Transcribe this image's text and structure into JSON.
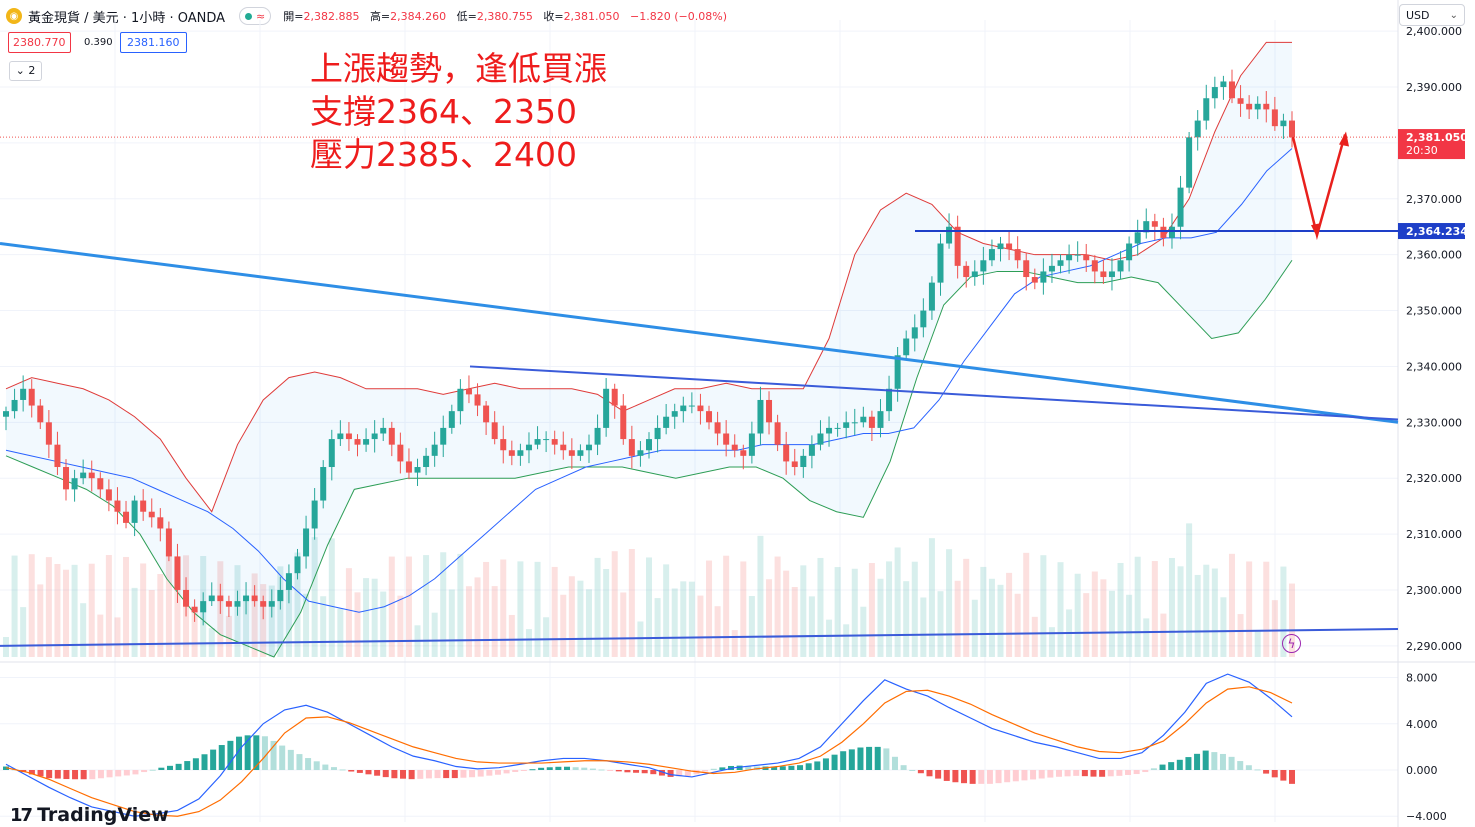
{
  "header": {
    "symbol": "黃金現貨 / 美元 · 1小時 · OANDA",
    "open_label": "開=",
    "open": "2,382.885",
    "high_label": "高=",
    "high": "2,384.260",
    "low_label": "低=",
    "low": "2,380.755",
    "close_label": "收=",
    "close": "2,381.050",
    "change": "−1.820 (−0.08%)",
    "bid": "2380.770",
    "spread": "0.390",
    "ask": "2381.160",
    "indicator_toggle": "2"
  },
  "currency": "USD",
  "annotation": [
    "上漲趨勢，逢低買漲",
    "支撐2364、2350",
    "壓力2385、2400"
  ],
  "logo": "TradingView",
  "colors": {
    "up": "#26a69a",
    "down": "#ef5350",
    "annotation": "#ee1c1c",
    "trendline": "#2962ff"
  },
  "chart_data": [
    {
      "type": "candlestick",
      "y_ticks": [
        "2,400.000",
        "2,390.000",
        "2,381.050",
        "2,370.000",
        "2,364.234",
        "2,360.000",
        "2,350.000",
        "2,340.000",
        "2,330.000",
        "2,320.000",
        "2,310.000",
        "2,300.000",
        "2,290.000"
      ],
      "ylim": [
        2288,
        2402
      ],
      "last_price_label": "2,381.050",
      "countdown": "20:30",
      "support_level_label": "2,364.234",
      "closes": [
        2332,
        2334,
        2336,
        2333,
        2330,
        2326,
        2322,
        2318,
        2320,
        2321,
        2320,
        2318,
        2316,
        2314,
        2312,
        2316,
        2314,
        2313,
        2311,
        2306,
        2300,
        2297,
        2296,
        2298,
        2299,
        2298,
        2297,
        2298,
        2299,
        2298,
        2297,
        2298,
        2300,
        2303,
        2306,
        2311,
        2316,
        2322,
        2327,
        2328,
        2327,
        2326,
        2327,
        2328,
        2329,
        2326,
        2323,
        2321,
        2322,
        2324,
        2326,
        2329,
        2332,
        2336,
        2335,
        2333,
        2330,
        2327,
        2325,
        2324,
        2325,
        2326,
        2327,
        2327,
        2326,
        2325,
        2324,
        2325,
        2326,
        2329,
        2336,
        2333,
        2327,
        2324,
        2325,
        2327,
        2329,
        2331,
        2332,
        2333,
        2333,
        2332,
        2330,
        2328,
        2326,
        2325,
        2324,
        2328,
        2334,
        2330,
        2326,
        2323,
        2322,
        2324,
        2326,
        2328,
        2329,
        2329,
        2330,
        2330,
        2331,
        2329,
        2332,
        2336,
        2342,
        2345,
        2347,
        2350,
        2355,
        2362,
        2365,
        2358,
        2356,
        2357,
        2359,
        2361,
        2362,
        2361,
        2359,
        2356,
        2355,
        2357,
        2358,
        2359,
        2360,
        2360,
        2359,
        2357,
        2356,
        2357,
        2359,
        2362,
        2364,
        2366,
        2365,
        2363,
        2365,
        2372,
        2381,
        2384,
        2388,
        2390,
        2391,
        2388,
        2387,
        2386,
        2387,
        2386,
        2383,
        2384,
        2381
      ],
      "middle_band": [
        2325,
        2324,
        2323,
        2322,
        2321,
        2320,
        2318,
        2316,
        2314,
        2311,
        2307,
        2302,
        2298,
        2297,
        2296,
        2297,
        2299,
        2302,
        2306,
        2310,
        2314,
        2318,
        2320,
        2322,
        2323,
        2324,
        2325,
        2325,
        2325,
        2325,
        2326,
        2326,
        2326,
        2327,
        2328,
        2328,
        2329,
        2334,
        2341,
        2347,
        2353,
        2356,
        2357,
        2358,
        2360,
        2362,
        2363,
        2363,
        2364,
        2369,
        2375,
        2379
      ],
      "upper_band": [
        2336,
        2338,
        2337,
        2336,
        2334,
        2331,
        2327,
        2320,
        2314,
        2326,
        2334,
        2338,
        2339,
        2338,
        2336,
        2336,
        2336,
        2335,
        2336,
        2337,
        2336,
        2336,
        2336,
        2335,
        2332,
        2334,
        2336,
        2336,
        2337,
        2336,
        2336,
        2336,
        2345,
        2360,
        2368,
        2371,
        2369,
        2364,
        2362,
        2361,
        2360,
        2360,
        2360,
        2359,
        2360,
        2363,
        2370,
        2382,
        2392,
        2398,
        2398
      ],
      "lower_band": [
        2324,
        2322,
        2320,
        2318,
        2315,
        2310,
        2302,
        2296,
        2292,
        2290,
        2288,
        2296,
        2308,
        2318,
        2319,
        2320,
        2320,
        2320,
        2320,
        2320,
        2321,
        2322,
        2322,
        2322,
        2321,
        2320,
        2321,
        2322,
        2322,
        2320,
        2316,
        2314,
        2313,
        2323,
        2338,
        2351,
        2356,
        2357,
        2357,
        2356,
        2355,
        2355,
        2356,
        2355,
        2350,
        2345,
        2346,
        2352,
        2359
      ],
      "volume_tick_note": ""
    },
    {
      "type": "macd",
      "y_ticks": [
        "8.000",
        "4.000",
        "0.000",
        "−4.000"
      ],
      "ylim": [
        -4.5,
        9
      ],
      "macd_line": [
        0.5,
        -0.5,
        -1.5,
        -2.4,
        -3.2,
        -3.6,
        -4.0,
        -3.8,
        -3.5,
        -2.5,
        -0.5,
        2.0,
        4.0,
        5.2,
        5.6,
        5.0,
        4.0,
        3.0,
        2.0,
        1.2,
        0.8,
        0.3,
        0.1,
        0.2,
        0.5,
        0.8,
        1.0,
        1.0,
        0.8,
        0.5,
        0.2,
        -0.4,
        -0.6,
        -0.2,
        0.2,
        0.4,
        0.6,
        1.0,
        2.0,
        4.0,
        6.0,
        7.8,
        7.0,
        6.4,
        5.4,
        4.5,
        3.6,
        3.0,
        2.4,
        2.0,
        1.5,
        1.0,
        1.0,
        1.5,
        3.0,
        5.0,
        7.5,
        8.3,
        7.6,
        6.2,
        4.6
      ],
      "signal_line": [
        0.2,
        -0.2,
        -0.8,
        -1.6,
        -2.4,
        -3.0,
        -3.6,
        -3.9,
        -4.0,
        -3.6,
        -2.6,
        -1.0,
        1.0,
        3.2,
        4.5,
        4.6,
        4.1,
        3.4,
        2.7,
        2.0,
        1.5,
        1.0,
        0.7,
        0.6,
        0.6,
        0.6,
        0.7,
        0.8,
        0.8,
        0.7,
        0.5,
        0.2,
        -0.1,
        -0.3,
        -0.2,
        0.1,
        0.3,
        0.6,
        1.2,
        2.4,
        4.0,
        5.8,
        6.8,
        6.9,
        6.4,
        5.7,
        4.8,
        4.0,
        3.2,
        2.6,
        2.0,
        1.6,
        1.5,
        1.8,
        2.5,
        4.0,
        5.8,
        7.0,
        7.2,
        6.7,
        5.8
      ]
    }
  ]
}
